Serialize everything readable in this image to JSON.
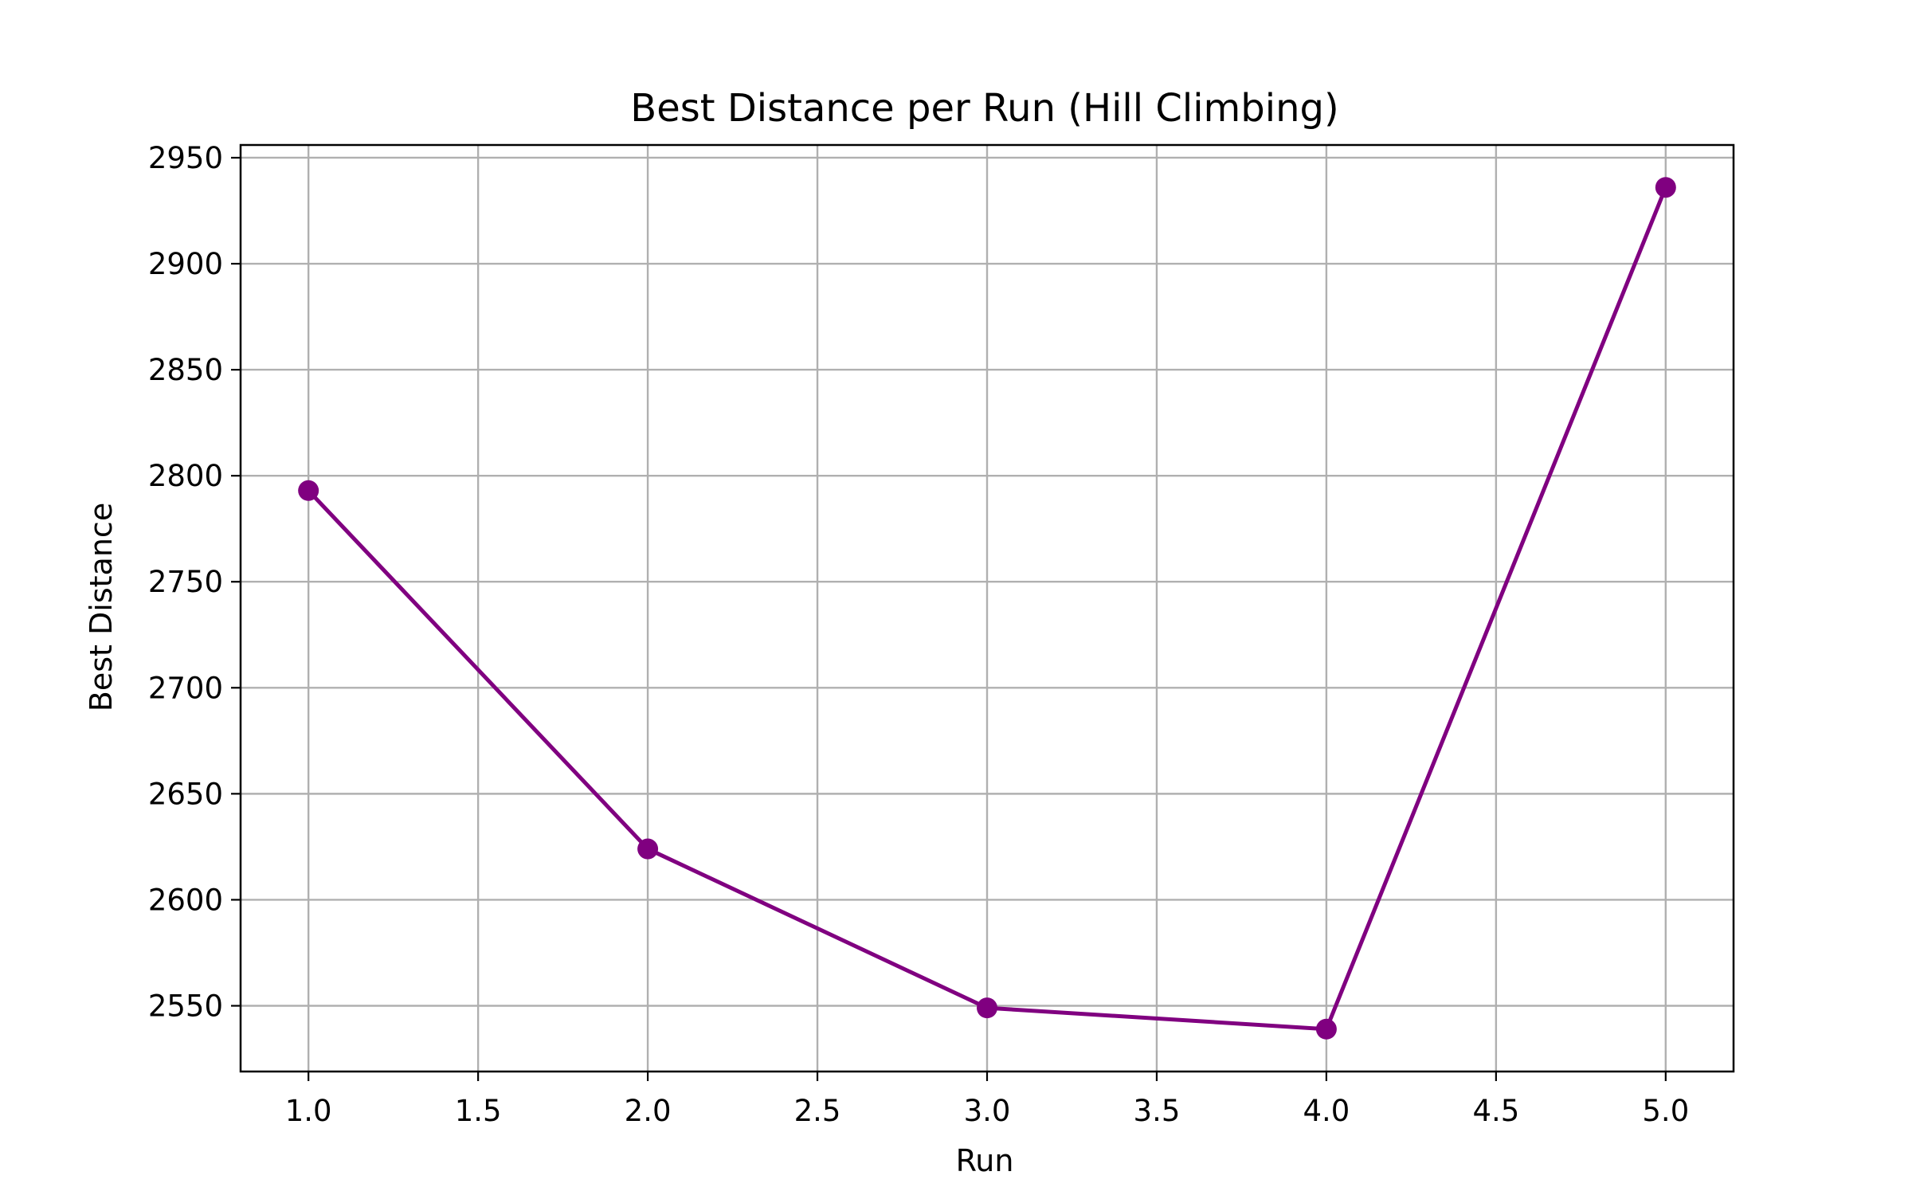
{
  "chart_data": {
    "type": "line",
    "title": "Best Distance per Run (Hill Climbing)",
    "xlabel": "Run",
    "ylabel": "Best Distance",
    "xlim": [
      0.8,
      5.2
    ],
    "ylim": [
      2519,
      2956
    ],
    "x_ticks": [
      1.0,
      1.5,
      2.0,
      2.5,
      3.0,
      3.5,
      4.0,
      4.5,
      5.0
    ],
    "x_tick_labels": [
      "1.0",
      "1.5",
      "2.0",
      "2.5",
      "3.0",
      "3.5",
      "4.0",
      "4.5",
      "5.0"
    ],
    "y_ticks": [
      2550,
      2600,
      2650,
      2700,
      2750,
      2800,
      2850,
      2900,
      2950
    ],
    "y_tick_labels": [
      "2550",
      "2600",
      "2650",
      "2700",
      "2750",
      "2800",
      "2850",
      "2900",
      "2950"
    ],
    "grid": true,
    "legend": false,
    "series": [
      {
        "x": [
          1,
          2,
          3,
          4,
          5
        ],
        "y": [
          2793,
          2624,
          2549,
          2539,
          2936
        ],
        "color": "#800080",
        "marker": "circle"
      }
    ]
  }
}
